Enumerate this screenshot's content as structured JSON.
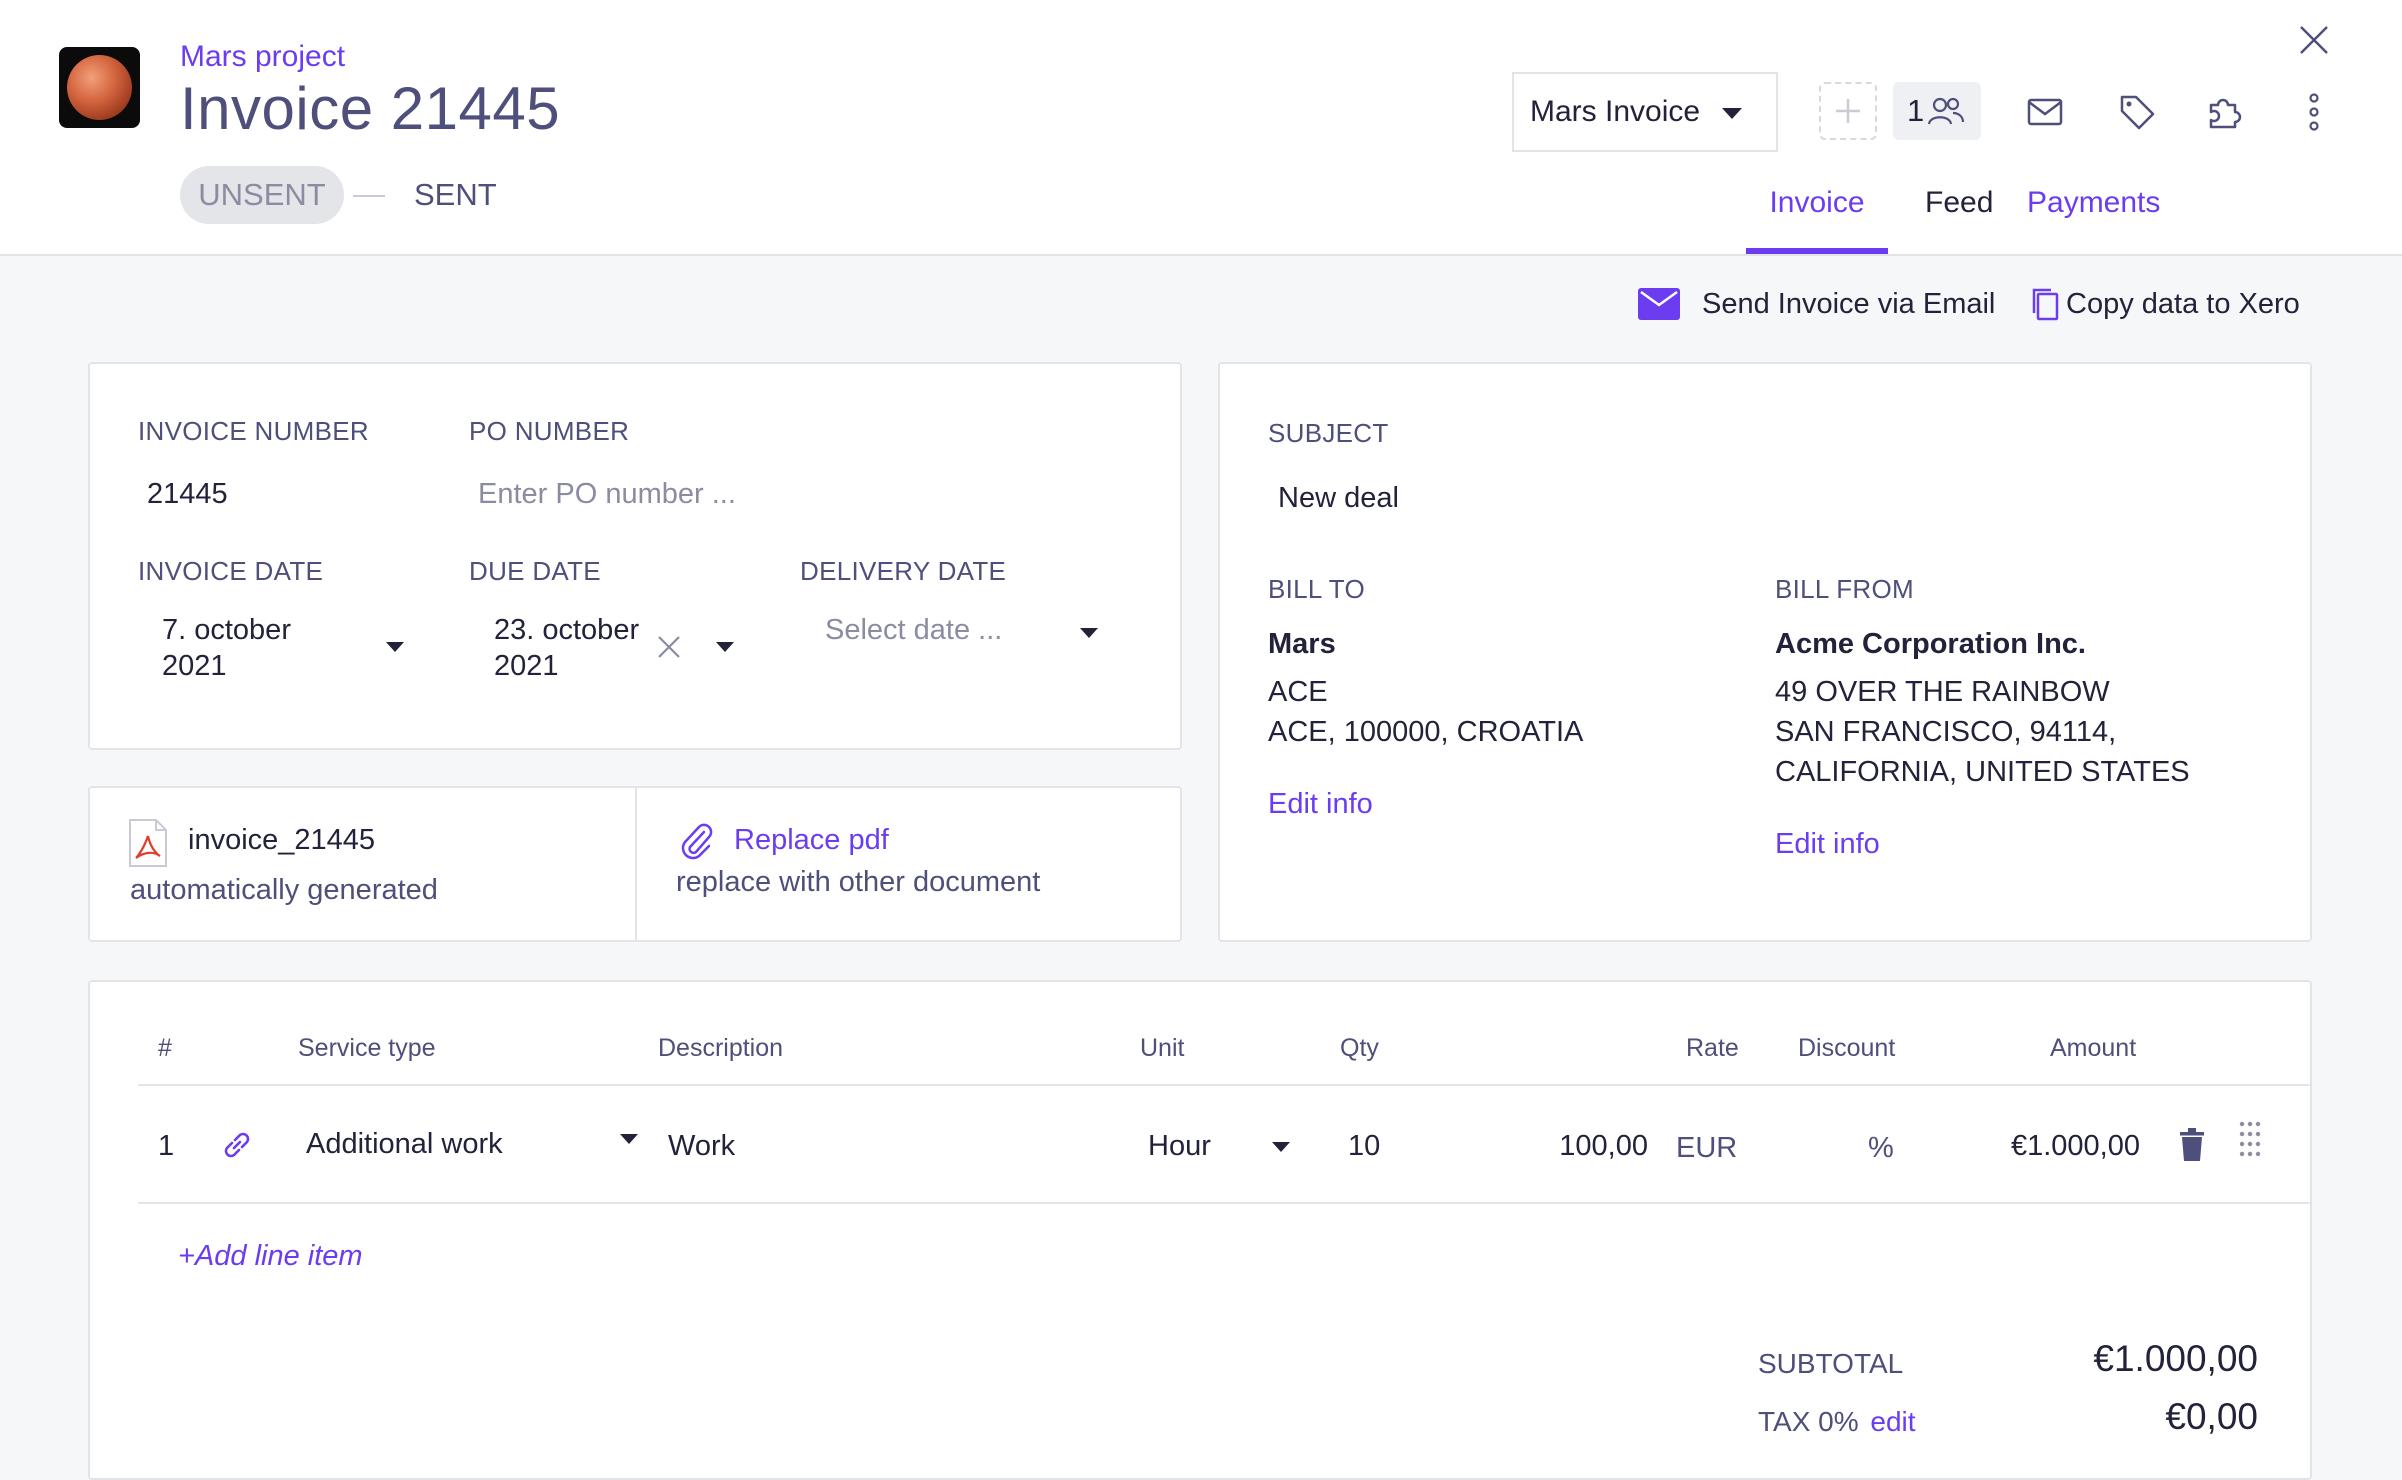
{
  "header": {
    "project_link": "Mars project",
    "title": "Invoice 21445",
    "status_unsent": "UNSENT",
    "status_sent": "SENT",
    "template_select": "Mars Invoice",
    "members_count": "1"
  },
  "tabs": [
    {
      "label": "Invoice"
    },
    {
      "label": "Feed"
    },
    {
      "label": "Payments"
    }
  ],
  "actions": {
    "send_email": "Send Invoice via Email",
    "copy_xero": "Copy data to Xero"
  },
  "invoice_details": {
    "invoice_number_label": "INVOICE NUMBER",
    "invoice_number": "21445",
    "po_number_label": "PO NUMBER",
    "po_number_placeholder": "Enter PO number ...",
    "invoice_date_label": "INVOICE DATE",
    "invoice_date_line1": "7. october",
    "invoice_date_line2": "2021",
    "due_date_label": "DUE DATE",
    "due_date_line1": "23. october",
    "due_date_line2": "2021",
    "delivery_date_label": "DELIVERY DATE",
    "delivery_date_placeholder": "Select date ..."
  },
  "document": {
    "file_name": "invoice_21445",
    "file_note": "automatically generated",
    "replace_label": "Replace pdf",
    "replace_note": "replace with other document"
  },
  "subject": {
    "label": "SUBJECT",
    "value": "New deal"
  },
  "bill_to": {
    "label": "BILL TO",
    "name": "Mars",
    "line1": "ACE",
    "line2": "ACE, 100000, CROATIA",
    "edit": "Edit info"
  },
  "bill_from": {
    "label": "BILL FROM",
    "name": "Acme Corporation Inc.",
    "line1": "49 OVER THE RAINBOW",
    "line2": "SAN FRANCISCO, 94114,",
    "line3": "CALIFORNIA, UNITED STATES",
    "edit": "Edit info"
  },
  "table": {
    "headers": {
      "num": "#",
      "service": "Service type",
      "description": "Description",
      "unit": "Unit",
      "qty": "Qty",
      "rate": "Rate",
      "discount": "Discount",
      "amount": "Amount"
    },
    "rows": [
      {
        "num": "1",
        "service": "Additional work",
        "description": "Work",
        "unit": "Hour",
        "qty": "10",
        "rate": "100,00",
        "currency": "EUR",
        "discount": "%",
        "amount": "€1.000,00"
      }
    ],
    "add_line": "+Add line item"
  },
  "totals": {
    "subtotal_label": "SUBTOTAL",
    "subtotal_value": "€1.000,00",
    "tax_label": "TAX 0%",
    "tax_edit": "edit",
    "tax_value": "€0,00"
  },
  "colors": {
    "accent": "#6c3cf0",
    "text": "#22223a",
    "muted": "#4e4f7a",
    "border": "#e3e4e8",
    "background": "#f6f7f9"
  }
}
